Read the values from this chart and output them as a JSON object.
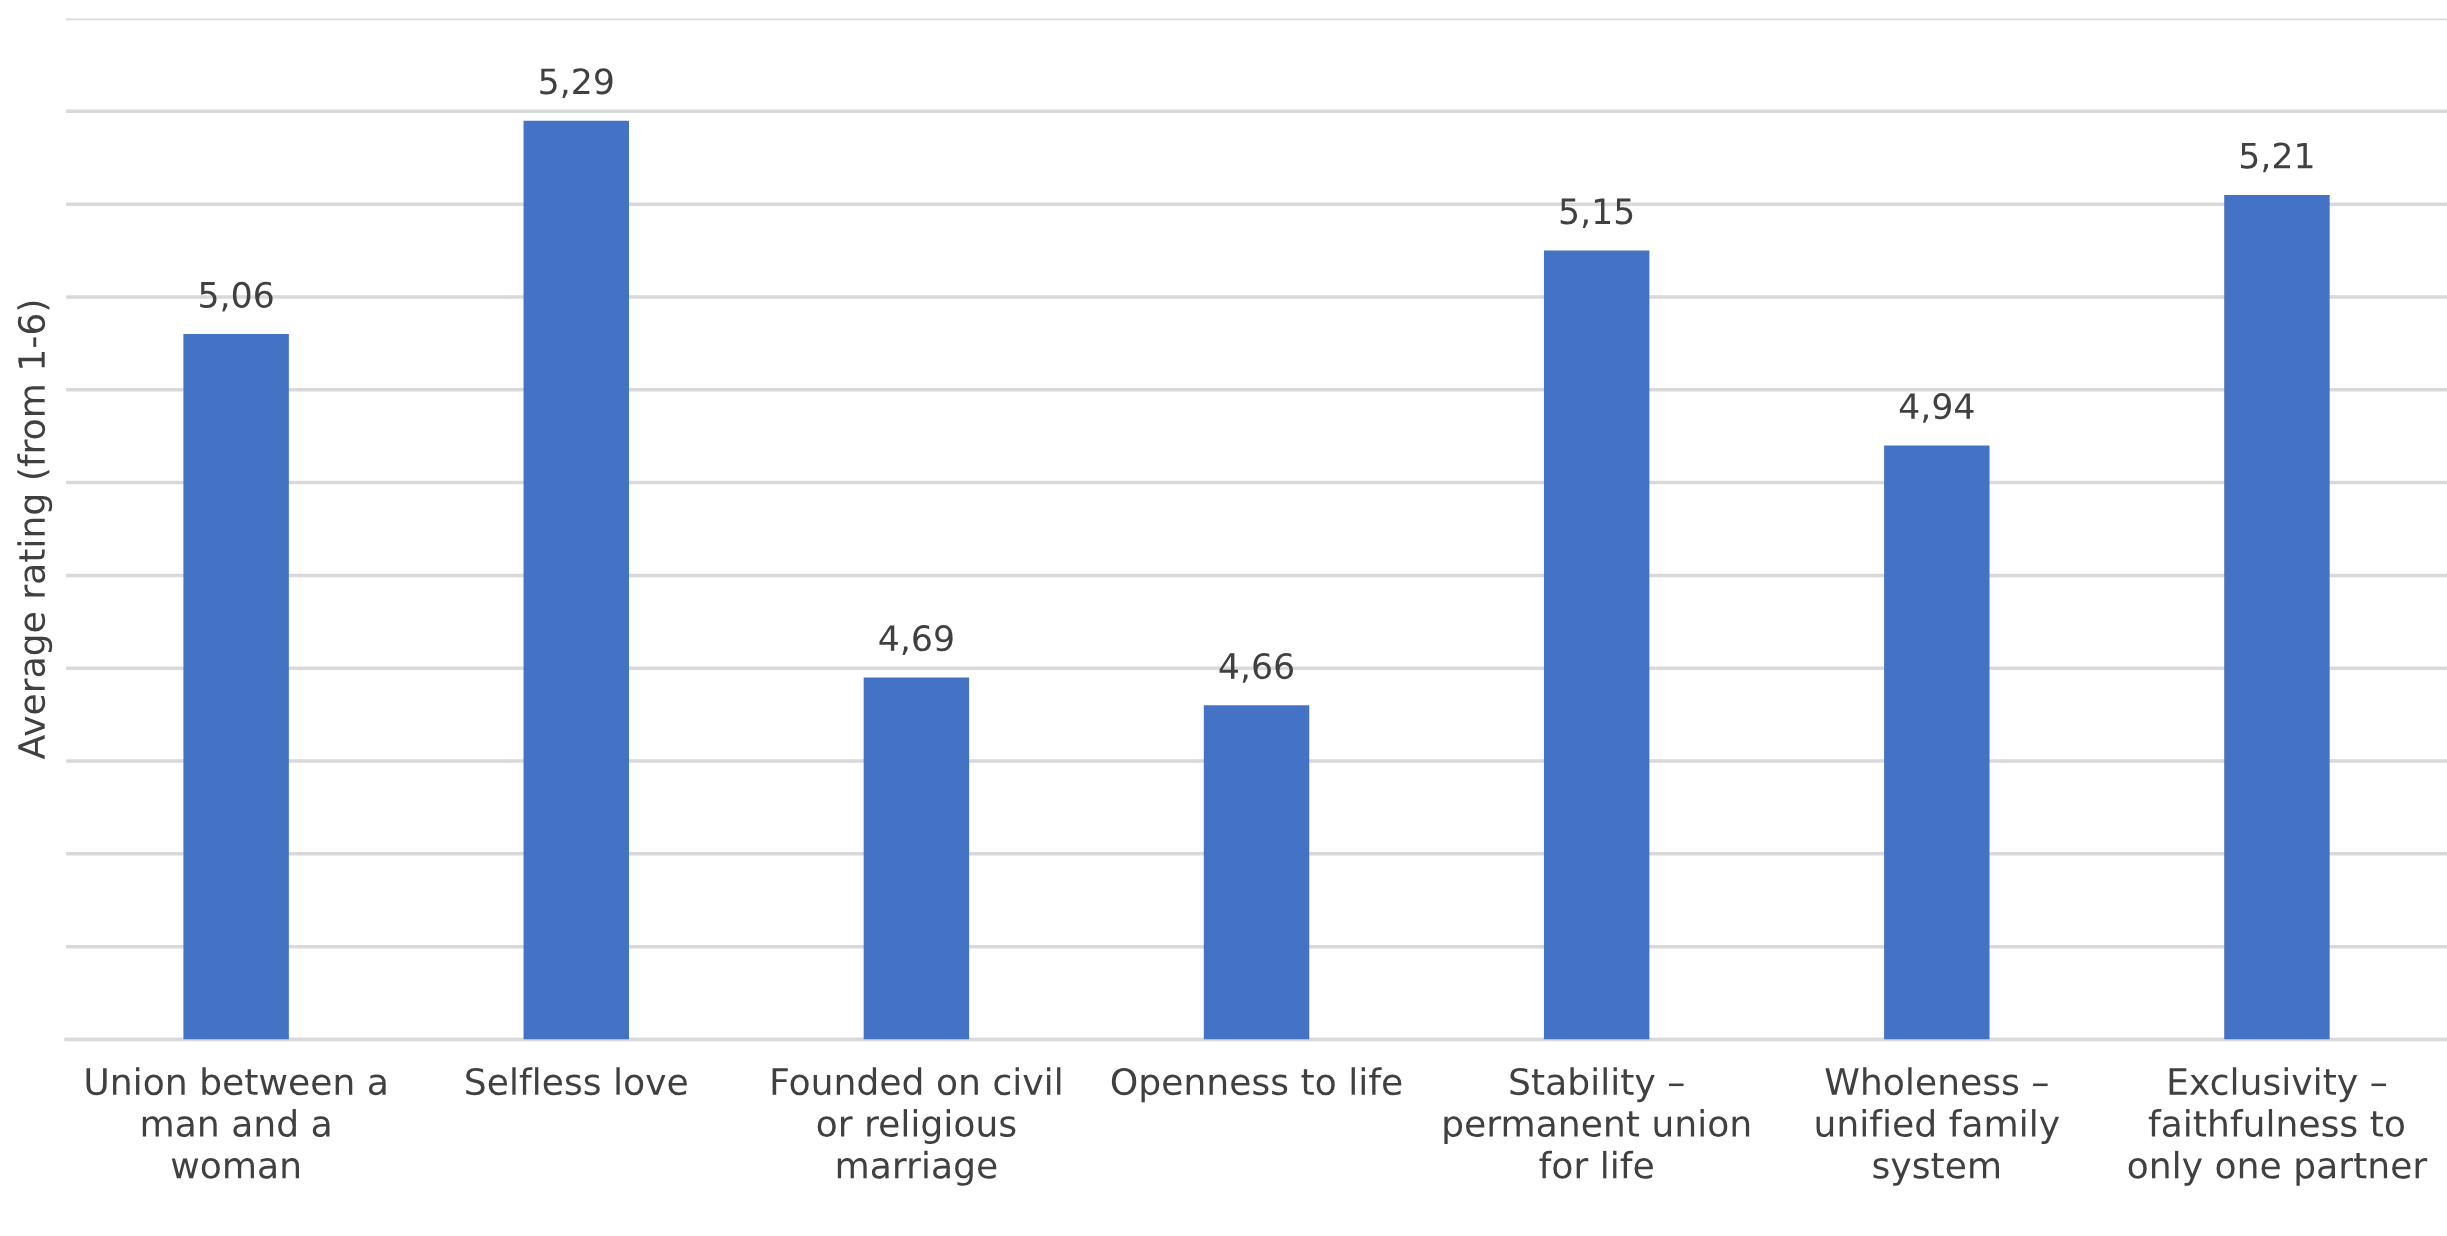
{
  "chart_data": {
    "type": "bar",
    "ylabel": "Average rating (from 1-6)",
    "categories": [
      "Union between a\nman and a\nwoman",
      "Selfless love",
      "Founded on civil\nor religious\nmarriage",
      "Openness to life",
      "Stability –\npermanent union\nfor life",
      "Wholeness –\nunified family\nsystem",
      "Exclusivity –\nfaithfulness to\nonly one partner"
    ],
    "values": [
      5.06,
      5.29,
      4.69,
      4.66,
      5.15,
      4.94,
      5.21
    ],
    "value_labels": [
      "5,06",
      "5,29",
      "4,69",
      "4,66",
      "5,15",
      "4,94",
      "5,21"
    ],
    "color": "#4472c4",
    "ylim": [
      4.3,
      5.4
    ],
    "yticks": [
      {
        "value": 4.3,
        "label": null
      },
      {
        "value": 4.4,
        "label": null
      },
      {
        "value": 4.5,
        "label": null
      },
      {
        "value": 4.6,
        "label": null
      },
      {
        "value": 4.7,
        "label": null
      },
      {
        "value": 4.8,
        "label": null
      },
      {
        "value": 4.9,
        "label": null
      },
      {
        "value": 5.0,
        "label": null
      },
      {
        "value": 5.1,
        "label": null
      },
      {
        "value": 5.2,
        "label": null
      },
      {
        "value": 5.3,
        "label": null
      },
      {
        "value": 5.4,
        "label": null
      }
    ],
    "tick_labels": "x",
    "grid": "y",
    "legend": false
  }
}
